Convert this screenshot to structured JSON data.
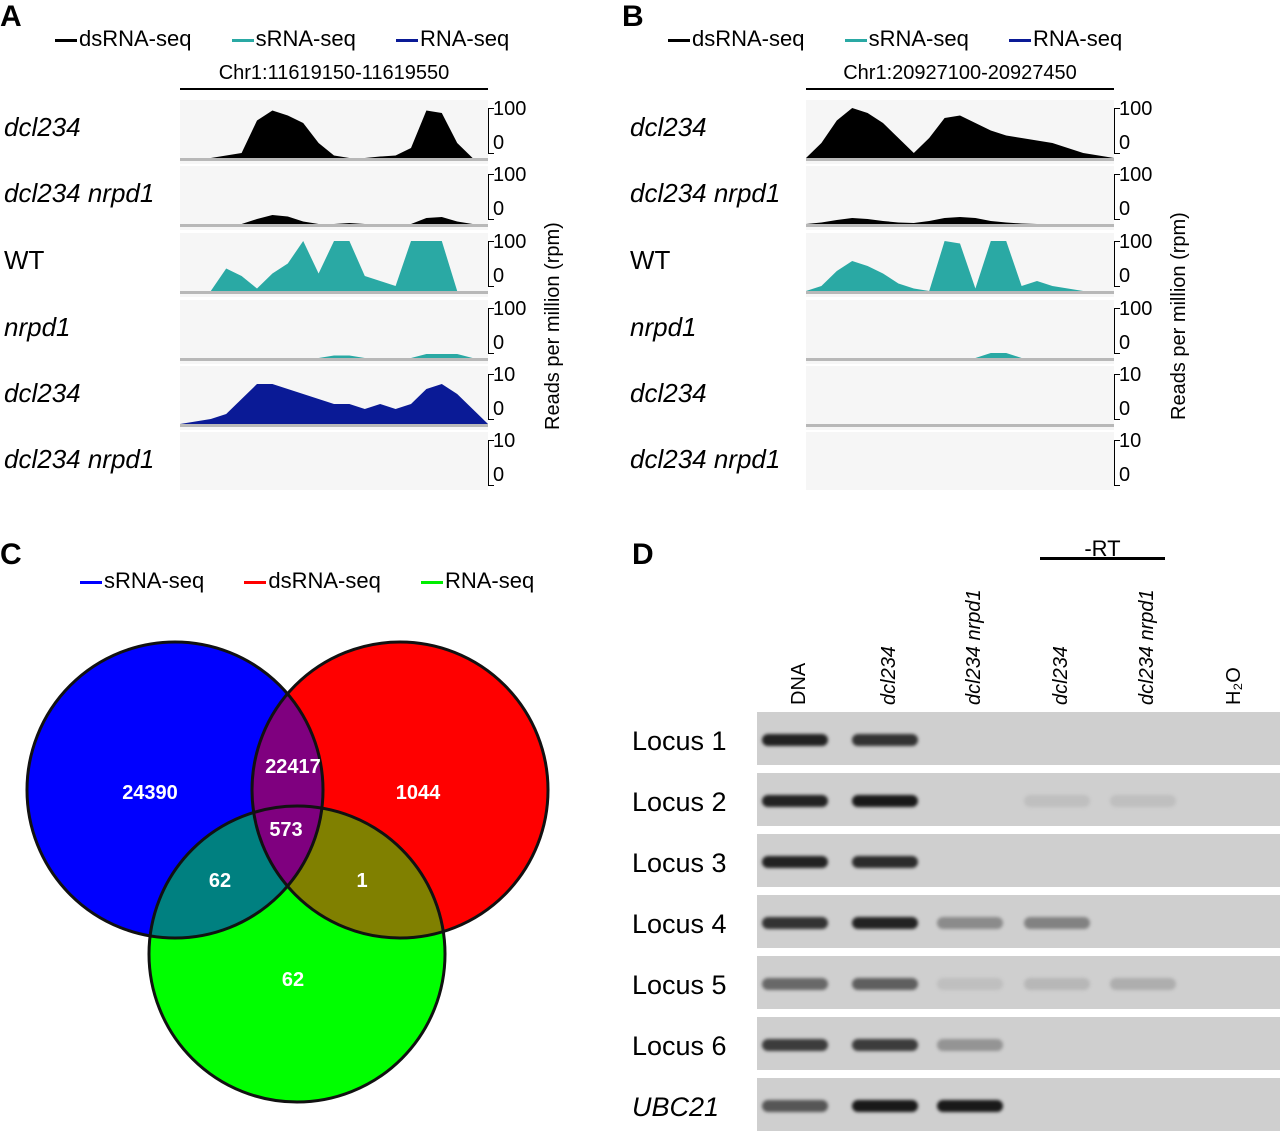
{
  "panels": {
    "A": {
      "label": "A",
      "legend": [
        {
          "label": "dsRNA-seq",
          "color": "#000000"
        },
        {
          "label": "sRNA-seq",
          "color": "#2aa9a4"
        },
        {
          "label": "RNA-seq",
          "color": "#0a1a96"
        }
      ],
      "coord": "Chr1:11619150-11619550",
      "rows": [
        {
          "label": "dcl234",
          "italic": true,
          "top": "100",
          "bottom": "0"
        },
        {
          "label": "dcl234 nrpd1",
          "italic": true,
          "top": "100",
          "bottom": "0"
        },
        {
          "label": "WT",
          "italic": false,
          "top": "100",
          "bottom": "0"
        },
        {
          "label": "nrpd1",
          "italic": true,
          "top": "100",
          "bottom": "0"
        },
        {
          "label": "dcl234",
          "italic": true,
          "top": "10",
          "bottom": "0"
        },
        {
          "label": "dcl234 nrpd1",
          "italic": true,
          "top": "10",
          "bottom": "0"
        }
      ],
      "ylabel": "Reads per million (rpm)"
    },
    "B": {
      "label": "B",
      "legend": [
        {
          "label": "dsRNA-seq",
          "color": "#000000"
        },
        {
          "label": "sRNA-seq",
          "color": "#2aa9a4"
        },
        {
          "label": "RNA-seq",
          "color": "#0a1a96"
        }
      ],
      "coord": "Chr1:20927100-20927450",
      "rows": [
        {
          "label": "dcl234",
          "italic": true,
          "top": "100",
          "bottom": "0"
        },
        {
          "label": "dcl234 nrpd1",
          "italic": true,
          "top": "100",
          "bottom": "0"
        },
        {
          "label": "WT",
          "italic": false,
          "top": "100",
          "bottom": "0"
        },
        {
          "label": "nrpd1",
          "italic": true,
          "top": "100",
          "bottom": "0"
        },
        {
          "label": "dcl234",
          "italic": true,
          "top": "10",
          "bottom": "0"
        },
        {
          "label": "dcl234 nrpd1",
          "italic": true,
          "top": "10",
          "bottom": "0"
        }
      ],
      "ylabel": "Reads per million (rpm)"
    },
    "C": {
      "label": "C",
      "legend": [
        {
          "label": "sRNA-seq",
          "color": "#0000ff"
        },
        {
          "label": "dsRNA-seq",
          "color": "#ff0000"
        },
        {
          "label": "RNA-seq",
          "color": "#00ee00"
        }
      ],
      "regions": {
        "srna_only": "24390",
        "srna_dsrna": "22417",
        "dsrna_only": "1044",
        "all_three": "573",
        "srna_rnaseq": "62",
        "dsrna_rnaseq": "1",
        "rnaseq_only": "62"
      }
    },
    "D": {
      "label": "D",
      "rt_label": "-RT",
      "lanes": [
        {
          "label": "DNA",
          "italic": false
        },
        {
          "label": "dcl234",
          "italic": true
        },
        {
          "label": "dcl234 nrpd1",
          "italic": true
        },
        {
          "label": "dcl234",
          "italic": true
        },
        {
          "label": "dcl234 nrpd1",
          "italic": true
        },
        {
          "label": "H₂O",
          "italic": false
        }
      ],
      "loci": [
        {
          "label": "Locus 1",
          "italic": false
        },
        {
          "label": "Locus 2",
          "italic": false
        },
        {
          "label": "Locus 3",
          "italic": false
        },
        {
          "label": "Locus 4",
          "italic": false
        },
        {
          "label": "Locus 5",
          "italic": false
        },
        {
          "label": "Locus 6",
          "italic": false
        },
        {
          "label": "UBC21",
          "italic": true
        }
      ]
    }
  },
  "chart_data": [
    {
      "type": "area",
      "panel": "A",
      "title": "Chr1:11619150-11619550",
      "ylabel": "Reads per million (rpm)",
      "x": [
        0,
        0.05,
        0.1,
        0.15,
        0.2,
        0.25,
        0.3,
        0.35,
        0.4,
        0.45,
        0.5,
        0.55,
        0.6,
        0.65,
        0.7,
        0.75,
        0.8,
        0.85,
        0.9,
        0.95,
        1.0
      ],
      "series": [
        {
          "name": "dsRNA-seq",
          "track": "dcl234",
          "ylim": [
            0,
            100
          ],
          "values": [
            0,
            0,
            0,
            5,
            10,
            75,
            95,
            85,
            70,
            30,
            5,
            0,
            0,
            3,
            5,
            20,
            95,
            90,
            30,
            0,
            0
          ]
        },
        {
          "name": "dsRNA-seq",
          "track": "dcl234 nrpd1",
          "ylim": [
            0,
            100
          ],
          "values": [
            0,
            0,
            0,
            0,
            0,
            10,
            18,
            15,
            5,
            0,
            0,
            2,
            0,
            0,
            0,
            0,
            12,
            14,
            5,
            0,
            0
          ]
        },
        {
          "name": "sRNA-seq",
          "track": "WT",
          "ylim": [
            0,
            100
          ],
          "values": [
            0,
            0,
            0,
            45,
            30,
            5,
            35,
            55,
            100,
            35,
            100,
            100,
            30,
            20,
            10,
            100,
            100,
            100,
            0,
            0,
            0
          ]
        },
        {
          "name": "sRNA-seq",
          "track": "nrpd1",
          "ylim": [
            0,
            100
          ],
          "values": [
            0,
            0,
            0,
            0,
            0,
            0,
            0,
            0,
            0,
            0,
            5,
            5,
            0,
            0,
            0,
            0,
            8,
            8,
            8,
            0,
            0
          ]
        },
        {
          "name": "RNA-seq",
          "track": "dcl234",
          "ylim": [
            0,
            10
          ],
          "values": [
            0,
            0.5,
            1,
            2,
            5,
            8,
            8,
            7,
            6,
            5,
            4,
            4,
            3,
            4,
            3,
            4,
            7,
            8,
            6,
            3,
            0
          ]
        },
        {
          "name": "RNA-seq",
          "track": "dcl234 nrpd1",
          "ylim": [
            0,
            10
          ],
          "values": [
            0,
            0,
            0,
            0,
            0,
            0,
            0,
            0,
            0,
            0,
            0,
            0,
            0,
            0,
            0,
            0,
            0,
            0,
            0,
            0,
            0
          ]
        }
      ]
    },
    {
      "type": "area",
      "panel": "B",
      "title": "Chr1:20927100-20927450",
      "ylabel": "Reads per million (rpm)",
      "x": [
        0,
        0.05,
        0.1,
        0.15,
        0.2,
        0.25,
        0.3,
        0.35,
        0.4,
        0.45,
        0.5,
        0.55,
        0.6,
        0.65,
        0.7,
        0.75,
        0.8,
        0.85,
        0.9,
        0.95,
        1.0
      ],
      "series": [
        {
          "name": "dsRNA-seq",
          "track": "dcl234",
          "ylim": [
            0,
            100
          ],
          "values": [
            0,
            30,
            75,
            100,
            90,
            70,
            40,
            10,
            40,
            80,
            85,
            70,
            55,
            45,
            40,
            35,
            30,
            20,
            10,
            5,
            0
          ]
        },
        {
          "name": "dsRNA-seq",
          "track": "dcl234 nrpd1",
          "ylim": [
            0,
            100
          ],
          "values": [
            0,
            3,
            8,
            12,
            10,
            6,
            3,
            2,
            6,
            12,
            14,
            12,
            6,
            3,
            1,
            0,
            0,
            0,
            0,
            0,
            0
          ]
        },
        {
          "name": "sRNA-seq",
          "track": "WT",
          "ylim": [
            0,
            100
          ],
          "values": [
            0,
            10,
            40,
            60,
            50,
            35,
            15,
            5,
            0,
            100,
            95,
            5,
            100,
            100,
            10,
            20,
            10,
            5,
            0,
            0,
            0
          ]
        },
        {
          "name": "sRNA-seq",
          "track": "nrpd1",
          "ylim": [
            0,
            100
          ],
          "values": [
            0,
            0,
            0,
            0,
            0,
            0,
            0,
            0,
            0,
            0,
            0,
            0,
            10,
            10,
            0,
            0,
            0,
            0,
            0,
            0,
            0
          ]
        },
        {
          "name": "RNA-seq",
          "track": "dcl234",
          "ylim": [
            0,
            10
          ],
          "values": [
            0,
            0,
            0,
            0,
            0,
            0,
            0,
            0,
            0,
            0,
            0,
            0,
            0,
            0,
            0,
            0,
            0,
            0,
            0,
            0,
            0
          ]
        },
        {
          "name": "RNA-seq",
          "track": "dcl234 nrpd1",
          "ylim": [
            0,
            10
          ],
          "values": [
            0,
            0,
            0,
            0,
            0,
            0,
            0,
            0,
            0,
            0,
            0,
            0,
            0,
            0,
            0,
            0,
            0,
            0,
            0,
            0,
            0
          ]
        }
      ]
    }
  ]
}
